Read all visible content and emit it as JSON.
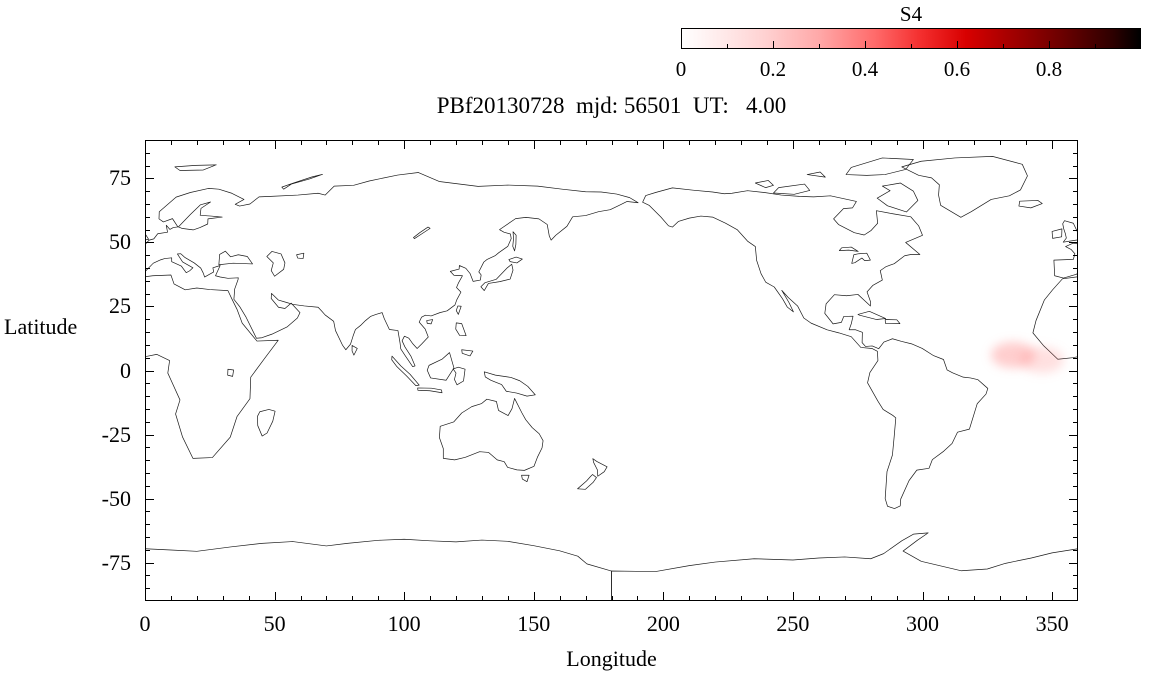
{
  "title": "PBf20130728  mjd: 56501  UT:   4.00",
  "colorbar": {
    "label": "S4",
    "min": 0,
    "max": 1,
    "tick_values": [
      0,
      0.2,
      0.4,
      0.6,
      0.8
    ],
    "tick_labels": [
      "0",
      "0.2",
      "0.4",
      "0.6",
      "0.8"
    ],
    "minor_tick_values": [
      0.1,
      0.3,
      0.5,
      0.7,
      0.9
    ],
    "gradient_stops": [
      "#ffffff 0%",
      "#ffecec 8%",
      "#ffd2d2 18%",
      "#ffa8a8 30%",
      "#ff6b6b 42%",
      "#f42f2f 52%",
      "#d80000 62%",
      "#a30000 72%",
      "#6b0000 83%",
      "#2e0000 94%",
      "#000000 100%"
    ]
  },
  "axes": {
    "x": {
      "label": "Longitude",
      "min": 0,
      "max": 360,
      "major_ticks": [
        0,
        50,
        100,
        150,
        200,
        250,
        300,
        350
      ],
      "minor_step": 10
    },
    "y": {
      "label": "Latitude",
      "min": -90,
      "max": 90,
      "major_ticks": [
        -75,
        -50,
        -25,
        0,
        25,
        50,
        75
      ],
      "minor_step": 5
    }
  },
  "chart_data": {
    "type": "heatmap",
    "title": "PBf20130728  mjd: 56501  UT:   4.00",
    "xlabel": "Longitude",
    "ylabel": "Latitude",
    "xlim": [
      0,
      360
    ],
    "ylim": [
      -90,
      90
    ],
    "grid": false,
    "legend_position": "top-right-colorbar",
    "colorbar": {
      "label": "S4",
      "range": [
        0,
        1
      ]
    },
    "basemap": "world-coastlines-pacific-centered-0-360",
    "background_s4": 0,
    "points": [
      {
        "lon": 335,
        "lat": 6,
        "s4": 0.08
      },
      {
        "lon": 346,
        "lat": 4,
        "s4": 0.05
      }
    ]
  }
}
